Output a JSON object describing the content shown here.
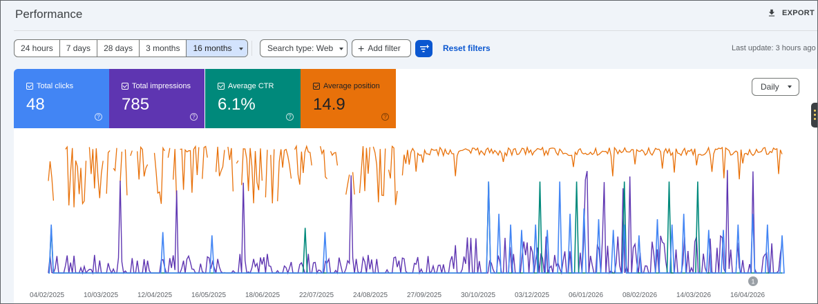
{
  "header": {
    "title": "Performance",
    "export_label": "EXPORT"
  },
  "toolbar": {
    "ranges": [
      "24 hours",
      "7 days",
      "28 days",
      "3 months",
      "16 months"
    ],
    "active_range": "16 months",
    "search_type": "Search type: Web",
    "add_filter": "Add filter",
    "reset_filters": "Reset filters",
    "last_update": "Last update: 3 hours ago"
  },
  "metrics": [
    {
      "label": "Total clicks",
      "value": "48",
      "color": "#4285f4"
    },
    {
      "label": "Total impressions",
      "value": "785",
      "color": "#5e35b1"
    },
    {
      "label": "Average CTR",
      "value": "6.1%",
      "color": "#00897b"
    },
    {
      "label": "Average position",
      "value": "14.9",
      "color": "#e8710a"
    }
  ],
  "granularity": "Daily",
  "annotation_badge": "1",
  "chart_data": {
    "type": "line",
    "x_labels": [
      "04/02/2025",
      "10/03/2025",
      "12/04/2025",
      "16/05/2025",
      "18/06/2025",
      "22/07/2025",
      "24/08/2025",
      "27/09/2025",
      "30/10/2025",
      "03/12/2025",
      "06/01/2026",
      "08/02/2026",
      "14/03/2026",
      "16/04/2026"
    ],
    "series": [
      {
        "name": "Total clicks",
        "color": "#4285f4",
        "spikes": [
          [
            0.004,
            0.45
          ],
          [
            0.156,
            0.38
          ],
          [
            0.223,
            0.35
          ],
          [
            0.377,
            0.38
          ],
          [
            0.6,
            0.85
          ],
          [
            0.614,
            0.55
          ],
          [
            0.63,
            0.45
          ],
          [
            0.645,
            0.4
          ],
          [
            0.664,
            0.45
          ],
          [
            0.68,
            0.4
          ],
          [
            0.697,
            0.85
          ],
          [
            0.711,
            0.55
          ],
          [
            0.73,
            0.6
          ],
          [
            0.75,
            0.5
          ],
          [
            0.77,
            0.4
          ],
          [
            0.785,
            0.45
          ],
          [
            0.805,
            0.35
          ],
          [
            0.83,
            0.5
          ],
          [
            0.85,
            0.45
          ],
          [
            0.866,
            0.55
          ],
          [
            0.9,
            0.4
          ],
          [
            0.92,
            0.4
          ],
          [
            0.94,
            0.45
          ],
          [
            0.96,
            0.55
          ],
          [
            0.98,
            0.45
          ],
          [
            1.0,
            0.35
          ]
        ]
      },
      {
        "name": "Total impressions",
        "color": "#5e35b1",
        "level": 0.07
      },
      {
        "name": "Average CTR",
        "color": "#00897b",
        "spikes": [
          [
            0.004,
            0.42
          ],
          [
            0.35,
            0.42
          ],
          [
            0.6,
            0.85
          ],
          [
            0.67,
            0.85
          ],
          [
            0.72,
            0.85
          ],
          [
            0.785,
            0.85
          ],
          [
            0.846,
            0.85
          ],
          [
            0.885,
            0.85
          ]
        ]
      },
      {
        "name": "Average position",
        "color": "#e8710a"
      }
    ]
  }
}
